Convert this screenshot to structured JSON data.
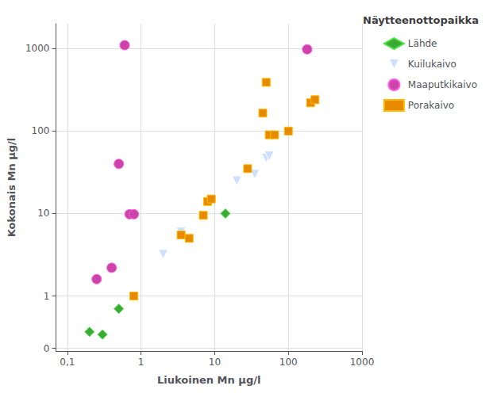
{
  "chart_data": {
    "type": "scatter",
    "title": "Näytteenottopaikka",
    "xlabel": "Liukoinen Mn μg/l",
    "ylabel": "Kokonais Mn μg/l",
    "log": true,
    "grid": true,
    "legend": "right",
    "xlim": [
      0.07,
      1000
    ],
    "xticks": [
      {
        "value": 0.1,
        "label": "0,1"
      },
      1,
      10,
      100,
      1000
    ],
    "ylim": [
      -0.05,
      2000
    ],
    "yticks": [
      0,
      1,
      10,
      100,
      1000
    ],
    "series": [
      {
        "name": "Lähde",
        "marker": "diamond",
        "color": "#3aaa35",
        "x": [
          0.2,
          0.3,
          0.5,
          14
        ],
        "values": [
          0.3,
          0.25,
          0.7,
          10
        ]
      },
      {
        "name": "Kuilukaivo",
        "marker": "triangle-down",
        "color": "#cce0ff",
        "x": [
          2.0,
          3.5,
          20,
          35,
          50,
          55
        ],
        "values": [
          3.2,
          6.0,
          25,
          30,
          47,
          50
        ]
      },
      {
        "name": "Maaputkikaivo",
        "marker": "circle",
        "color": "#cc44aa",
        "x": [
          0.25,
          0.4,
          0.5,
          0.7,
          0.8,
          0.6,
          180
        ],
        "values": [
          1.6,
          2.2,
          40,
          9.8,
          9.8,
          1100,
          980
        ]
      },
      {
        "name": "Porakaivo",
        "marker": "square",
        "color": "#e88a00",
        "x": [
          0.8,
          3.5,
          4.5,
          7,
          8,
          9,
          28,
          45,
          55,
          65,
          100,
          200,
          230,
          50
        ],
        "values": [
          1.0,
          5.5,
          5.0,
          9.5,
          14,
          15,
          35,
          165,
          90,
          90,
          100,
          220,
          240,
          390
        ]
      }
    ]
  }
}
